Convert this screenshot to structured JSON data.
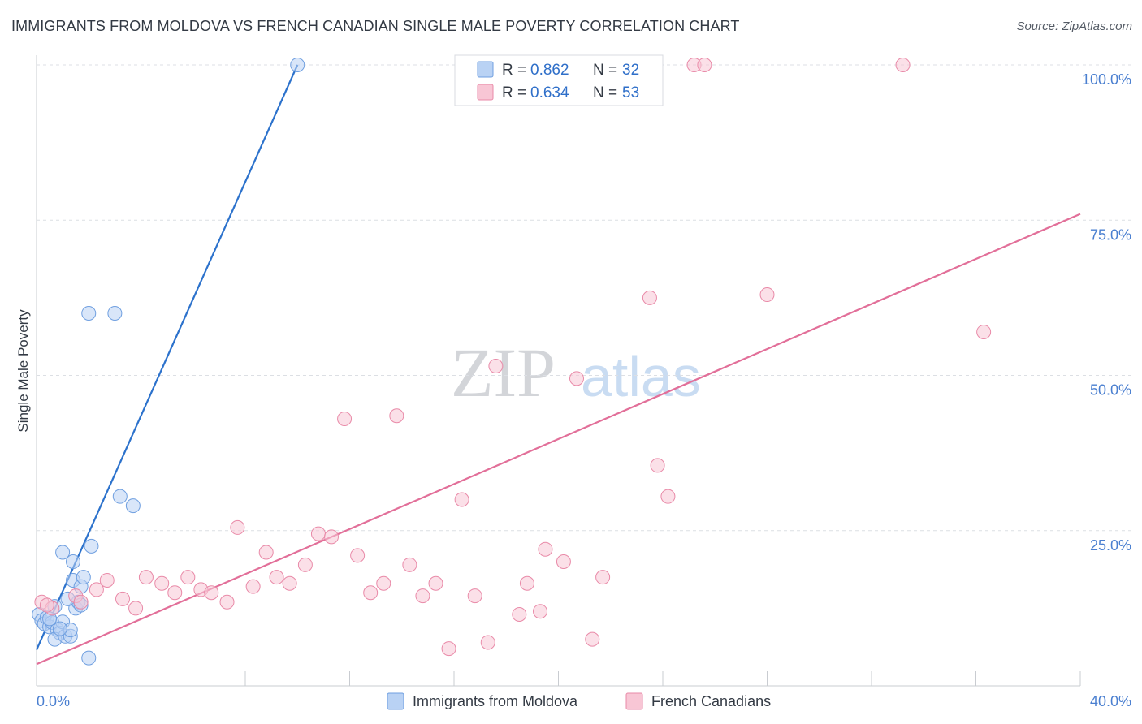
{
  "title": "IMMIGRANTS FROM MOLDOVA VS FRENCH CANADIAN SINGLE MALE POVERTY CORRELATION CHART",
  "source": "Source: ZipAtlas.com",
  "watermark": {
    "zip": "ZIP",
    "atlas": "atlas"
  },
  "chart_data": {
    "type": "scatter",
    "xlabel": "",
    "ylabel": "Single Male Poverty",
    "xlim": [
      0,
      40
    ],
    "ylim": [
      0,
      100
    ],
    "x_tick_labels": [
      {
        "value": 0,
        "label": "0.0%"
      },
      {
        "value": 40,
        "label": "40.0%"
      }
    ],
    "x_minor_ticks": [
      4,
      8,
      12,
      16,
      20,
      24,
      28,
      32,
      36,
      40
    ],
    "y_tick_labels": [
      {
        "value": 25,
        "label": "25.0%"
      },
      {
        "value": 50,
        "label": "50.0%"
      },
      {
        "value": 75,
        "label": "75.0%"
      },
      {
        "value": 100,
        "label": "100.0%"
      }
    ],
    "grid": true,
    "legend_placement": "top-center",
    "series": [
      {
        "name": "Immigrants from Moldova",
        "color": "#6f9fe0",
        "fill": "#b9d2f4",
        "line_color": "#2c72cc",
        "R": "0.862",
        "N": "32",
        "trend": {
          "x0": 0.0,
          "y0": 5.8,
          "x1": 10.0,
          "y1": 100.0
        },
        "points": [
          [
            0.1,
            11.5
          ],
          [
            0.2,
            10.5
          ],
          [
            0.3,
            10.0
          ],
          [
            0.4,
            11.0
          ],
          [
            0.5,
            9.5
          ],
          [
            0.6,
            10.2
          ],
          [
            0.7,
            12.8
          ],
          [
            0.8,
            9.0
          ],
          [
            0.9,
            8.5
          ],
          [
            1.0,
            10.3
          ],
          [
            0.7,
            7.5
          ],
          [
            1.1,
            8.0
          ],
          [
            1.3,
            8.0
          ],
          [
            1.3,
            9.0
          ],
          [
            1.4,
            17.0
          ],
          [
            1.5,
            12.5
          ],
          [
            1.6,
            13.5
          ],
          [
            1.7,
            13.0
          ],
          [
            1.7,
            16.0
          ],
          [
            1.8,
            17.5
          ],
          [
            1.0,
            21.5
          ],
          [
            1.4,
            20.0
          ],
          [
            2.1,
            22.5
          ],
          [
            3.2,
            30.5
          ],
          [
            3.7,
            29.0
          ],
          [
            2.0,
            60.0
          ],
          [
            3.0,
            60.0
          ],
          [
            10.0,
            100.0
          ],
          [
            2.0,
            4.5
          ],
          [
            1.2,
            14.0
          ],
          [
            0.5,
            10.8
          ],
          [
            0.9,
            9.2
          ]
        ]
      },
      {
        "name": "French Canadians",
        "color": "#e98aa8",
        "fill": "#f8c6d5",
        "line_color": "#e26f99",
        "R": "0.634",
        "N": "53",
        "trend": {
          "x0": 0.0,
          "y0": 3.5,
          "x1": 40.0,
          "y1": 76.0
        },
        "points": [
          [
            0.2,
            13.5
          ],
          [
            0.6,
            12.5
          ],
          [
            1.5,
            14.5
          ],
          [
            1.7,
            13.5
          ],
          [
            2.3,
            15.5
          ],
          [
            2.7,
            17.0
          ],
          [
            3.3,
            14.0
          ],
          [
            3.8,
            12.5
          ],
          [
            4.2,
            17.5
          ],
          [
            4.8,
            16.5
          ],
          [
            5.3,
            15.0
          ],
          [
            5.8,
            17.5
          ],
          [
            6.3,
            15.5
          ],
          [
            6.7,
            15.0
          ],
          [
            7.3,
            13.5
          ],
          [
            7.7,
            25.5
          ],
          [
            8.3,
            16.0
          ],
          [
            8.8,
            21.5
          ],
          [
            9.2,
            17.5
          ],
          [
            9.7,
            16.5
          ],
          [
            10.3,
            19.5
          ],
          [
            10.8,
            24.5
          ],
          [
            11.3,
            24.0
          ],
          [
            11.8,
            43.0
          ],
          [
            12.3,
            21.0
          ],
          [
            12.8,
            15.0
          ],
          [
            13.3,
            16.5
          ],
          [
            13.8,
            43.5
          ],
          [
            14.3,
            19.5
          ],
          [
            14.8,
            14.5
          ],
          [
            15.3,
            16.5
          ],
          [
            15.8,
            6.0
          ],
          [
            16.3,
            30.0
          ],
          [
            16.8,
            14.5
          ],
          [
            17.3,
            7.0
          ],
          [
            17.6,
            51.5
          ],
          [
            18.5,
            11.5
          ],
          [
            18.8,
            16.5
          ],
          [
            19.3,
            12.0
          ],
          [
            19.5,
            22.0
          ],
          [
            20.2,
            20.0
          ],
          [
            20.7,
            49.5
          ],
          [
            21.3,
            7.5
          ],
          [
            21.7,
            17.5
          ],
          [
            23.5,
            62.5
          ],
          [
            23.8,
            35.5
          ],
          [
            24.2,
            30.5
          ],
          [
            25.2,
            100.0
          ],
          [
            25.6,
            100.0
          ],
          [
            28.0,
            63.0
          ],
          [
            33.2,
            100.0
          ],
          [
            36.3,
            57.0
          ],
          [
            0.4,
            13.0
          ]
        ]
      }
    ]
  }
}
